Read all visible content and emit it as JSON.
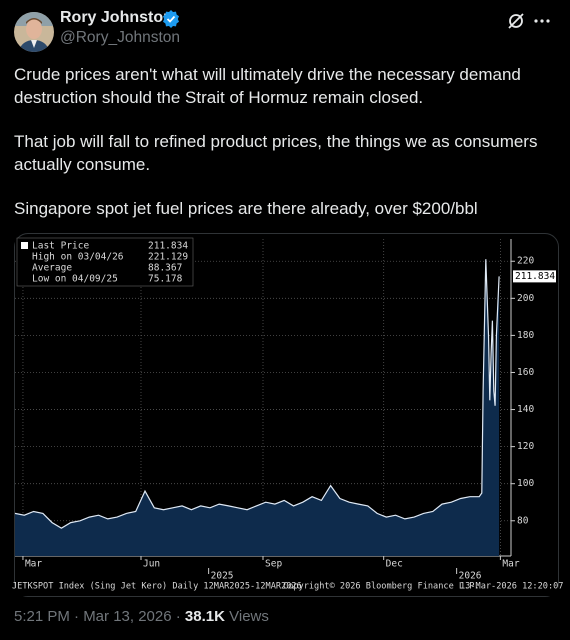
{
  "tweet": {
    "author_name": "Rory Johnston",
    "handle": "@Rory_Johnston",
    "paragraphs": [
      "Crude prices aren't what will ultimately drive the necessary demand destruction should the Strait of Hormuz remain closed.",
      "That job will fall to refined product prices, the things we as consumers actually consume.",
      "Singapore spot jet fuel prices are there already, over $200/bbl"
    ],
    "timestamp": "5:21 PM · Mar 13, 2026 ·",
    "views": "38.1K",
    "views_label": "Views"
  },
  "chart_data": {
    "type": "area",
    "legend": [
      {
        "label": "Last Price",
        "value": 211.834
      },
      {
        "label": "High on 03/04/26",
        "value": 221.129
      },
      {
        "label": "Average",
        "value": 88.367
      },
      {
        "label": "Low on 04/09/25",
        "value": 75.178
      }
    ],
    "series": [
      {
        "color": "#dfe9f5",
        "x": [
          0,
          7,
          14,
          21,
          28,
          35,
          42,
          49,
          56,
          63,
          70,
          77,
          84,
          91,
          98,
          105,
          112,
          119,
          126,
          133,
          140,
          147,
          154,
          161,
          168,
          175,
          182,
          189,
          196,
          203,
          210,
          217,
          224,
          231,
          238,
          245,
          252,
          259,
          266,
          273,
          280,
          287,
          294,
          301,
          308,
          315,
          322,
          329,
          336,
          343,
          350,
          352,
          353,
          355,
          357,
          358,
          359,
          360,
          361,
          362,
          363,
          365
        ],
        "values": [
          84,
          83,
          85,
          84,
          79,
          76,
          79,
          80,
          82,
          83,
          81,
          82,
          84,
          85,
          96,
          87,
          86,
          87,
          88,
          86,
          88,
          87,
          89,
          88,
          87,
          86,
          88,
          90,
          89,
          91,
          88,
          90,
          93,
          91,
          99,
          92,
          90,
          89,
          88,
          84,
          82,
          83,
          81,
          82,
          84,
          85,
          89,
          90,
          92,
          93,
          93,
          95,
          150,
          221.129,
          180,
          145,
          170,
          188,
          150,
          142,
          180,
          211.834
        ]
      }
    ],
    "fill_color": "#0e2b4c",
    "xlim": [
      0,
      374
    ],
    "ylim": [
      61,
      232
    ],
    "xticks": [
      {
        "value": 6,
        "label": "Mar"
      },
      {
        "value": 95,
        "label": "Jun"
      },
      {
        "value": 187,
        "label": "Sep"
      },
      {
        "value": 278,
        "label": "Dec"
      },
      {
        "value": 366,
        "label": "Mar"
      }
    ],
    "year_ticks": [
      {
        "value": 146,
        "label": "2025"
      },
      {
        "value": 333,
        "label": "2026"
      }
    ],
    "yticks": [
      80,
      100,
      120,
      140,
      160,
      180,
      200,
      220
    ],
    "grid": true,
    "source_line": "JETKSPOT Index (Sing Jet Kero) Daily 12MAR2025-12MAR2026",
    "copyright": "Copyright© 2026 Bloomberg Finance L.P.",
    "generated": "13-Mar-2026 12:20:07"
  }
}
